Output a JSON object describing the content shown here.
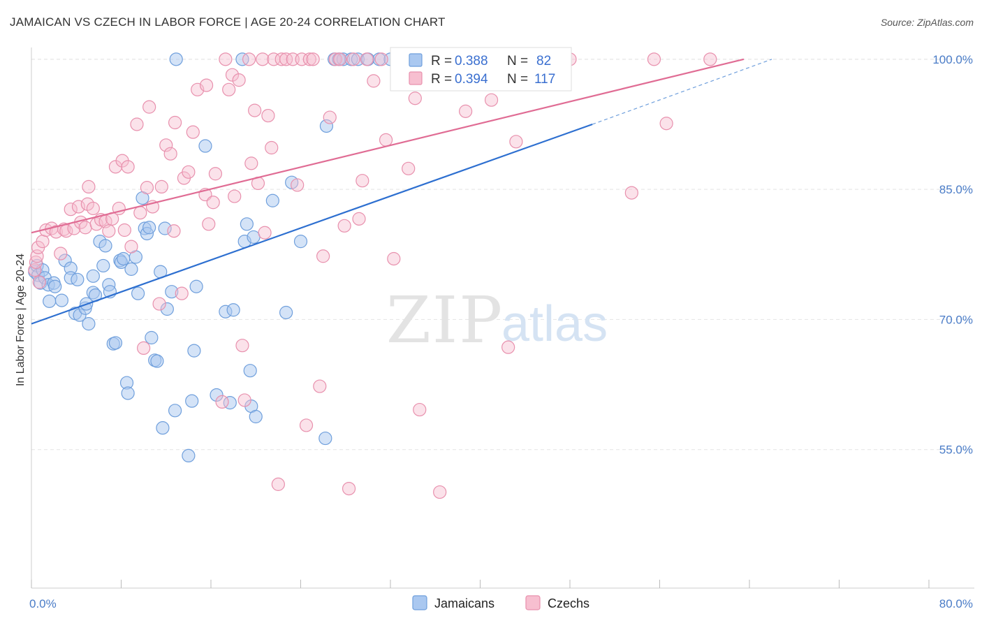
{
  "title": "JAMAICAN VS CZECH IN LABOR FORCE | AGE 20-24 CORRELATION CHART",
  "source": "Source: ZipAtlas.com",
  "colors": {
    "jamaicans_fill": "#aac8f0",
    "jamaicans_stroke": "#6f9fdc",
    "jamaicans_line": "#2d6fd0",
    "czechs_fill": "#f7bfd0",
    "czechs_stroke": "#e890ad",
    "czechs_line": "#e06c94",
    "tick_label": "#4a7cc7"
  },
  "legend": {
    "r_label": "R =",
    "n_label": "N =",
    "jamaicans_r": "0.388",
    "jamaicans_n": "82",
    "czechs_r": "0.394",
    "czechs_n": "117"
  },
  "watermark": {
    "zip": "ZIP",
    "atlas": "atlas"
  },
  "chart_data": {
    "type": "scatter",
    "title": "JAMAICAN VS CZECH IN LABOR FORCE | AGE 20-24 CORRELATION CHART",
    "xlabel": "",
    "ylabel": "In Labor Force | Age 20-24",
    "xlim": [
      0,
      80
    ],
    "ylim": [
      40,
      102
    ],
    "x_tick_labels": [
      "0.0%",
      "80.0%"
    ],
    "y_ticks": [
      55,
      70,
      85,
      100
    ],
    "y_tick_labels": [
      "55.0%",
      "70.0%",
      "85.0%",
      "100.0%"
    ],
    "grid": true,
    "legend_position": "top-center",
    "bottom_legend": [
      "Jamaicans",
      "Czechs"
    ],
    "series": [
      {
        "name": "Jamaicans",
        "r": 0.388,
        "n": 82,
        "trend": {
          "x0": 0,
          "y0": 69.5,
          "x1": 50,
          "y1": 92.5,
          "dash_x1": 66,
          "dash_y1": 100
        },
        "points": [
          [
            0.3,
            75.5
          ],
          [
            0.5,
            76.2
          ],
          [
            0.6,
            75.1
          ],
          [
            0.8,
            74.2
          ],
          [
            1.0,
            75.7
          ],
          [
            1.2,
            74.8
          ],
          [
            1.5,
            74.0
          ],
          [
            1.6,
            72.1
          ],
          [
            2.0,
            74.2
          ],
          [
            2.1,
            73.8
          ],
          [
            2.7,
            72.2
          ],
          [
            3.0,
            76.8
          ],
          [
            3.5,
            75.9
          ],
          [
            3.5,
            74.8
          ],
          [
            3.9,
            70.7
          ],
          [
            4.1,
            74.6
          ],
          [
            4.3,
            70.5
          ],
          [
            4.8,
            71.3
          ],
          [
            4.9,
            71.8
          ],
          [
            5.1,
            69.5
          ],
          [
            5.5,
            75.0
          ],
          [
            5.5,
            73.1
          ],
          [
            5.7,
            72.8
          ],
          [
            6.1,
            79.0
          ],
          [
            6.4,
            76.2
          ],
          [
            6.6,
            78.5
          ],
          [
            6.9,
            74.0
          ],
          [
            7.0,
            73.2
          ],
          [
            7.3,
            67.2
          ],
          [
            7.5,
            67.3
          ],
          [
            7.9,
            76.8
          ],
          [
            8.0,
            76.6
          ],
          [
            8.2,
            77.0
          ],
          [
            8.5,
            62.7
          ],
          [
            8.6,
            61.5
          ],
          [
            8.9,
            75.8
          ],
          [
            9.3,
            77.2
          ],
          [
            9.5,
            73.0
          ],
          [
            9.9,
            84.0
          ],
          [
            10.1,
            80.5
          ],
          [
            10.3,
            79.9
          ],
          [
            10.5,
            80.6
          ],
          [
            10.7,
            67.9
          ],
          [
            11.0,
            65.3
          ],
          [
            11.2,
            65.2
          ],
          [
            11.5,
            75.5
          ],
          [
            11.7,
            57.5
          ],
          [
            11.9,
            80.5
          ],
          [
            12.1,
            71.2
          ],
          [
            12.5,
            73.2
          ],
          [
            12.8,
            59.5
          ],
          [
            12.9,
            100.0
          ],
          [
            14.0,
            54.3
          ],
          [
            14.3,
            60.6
          ],
          [
            14.5,
            66.4
          ],
          [
            14.7,
            73.8
          ],
          [
            15.5,
            90.0
          ],
          [
            16.5,
            61.3
          ],
          [
            17.3,
            70.9
          ],
          [
            17.7,
            60.4
          ],
          [
            18.0,
            71.1
          ],
          [
            18.8,
            100.0
          ],
          [
            19.0,
            79.0
          ],
          [
            19.2,
            81.0
          ],
          [
            19.5,
            64.1
          ],
          [
            19.6,
            60.0
          ],
          [
            19.8,
            79.5
          ],
          [
            20.0,
            58.8
          ],
          [
            21.5,
            83.7
          ],
          [
            22.7,
            70.8
          ],
          [
            23.2,
            85.8
          ],
          [
            24.0,
            79.0
          ],
          [
            26.2,
            56.3
          ],
          [
            26.3,
            92.3
          ],
          [
            27.0,
            100.0
          ],
          [
            27.4,
            100.0
          ],
          [
            27.8,
            100.0
          ],
          [
            28.5,
            100.0
          ],
          [
            29.1,
            100.0
          ],
          [
            30.0,
            100.0
          ],
          [
            31.0,
            100.0
          ],
          [
            32.0,
            100.0
          ]
        ]
      },
      {
        "name": "Czechs",
        "r": 0.394,
        "n": 117,
        "trend": {
          "x0": 0,
          "y0": 80.0,
          "x1": 63.5,
          "y1": 100.0
        },
        "points": [
          [
            0.3,
            75.7
          ],
          [
            0.4,
            76.6
          ],
          [
            0.5,
            77.3
          ],
          [
            0.6,
            78.3
          ],
          [
            0.7,
            74.3
          ],
          [
            1.0,
            79.0
          ],
          [
            1.3,
            80.3
          ],
          [
            1.8,
            80.5
          ],
          [
            2.2,
            80.1
          ],
          [
            2.6,
            77.6
          ],
          [
            2.9,
            80.4
          ],
          [
            3.1,
            80.2
          ],
          [
            3.5,
            82.7
          ],
          [
            3.8,
            80.5
          ],
          [
            4.2,
            83.0
          ],
          [
            4.4,
            81.2
          ],
          [
            4.8,
            80.6
          ],
          [
            5.0,
            83.3
          ],
          [
            5.1,
            85.3
          ],
          [
            5.5,
            82.8
          ],
          [
            5.8,
            81.0
          ],
          [
            6.2,
            81.5
          ],
          [
            6.6,
            81.3
          ],
          [
            6.9,
            80.2
          ],
          [
            7.2,
            81.6
          ],
          [
            7.5,
            87.6
          ],
          [
            7.8,
            82.8
          ],
          [
            8.1,
            88.3
          ],
          [
            8.3,
            80.3
          ],
          [
            8.6,
            87.6
          ],
          [
            8.9,
            78.4
          ],
          [
            9.4,
            92.5
          ],
          [
            9.7,
            82.3
          ],
          [
            10.0,
            66.7
          ],
          [
            10.3,
            85.2
          ],
          [
            10.5,
            94.5
          ],
          [
            10.8,
            83.0
          ],
          [
            11.4,
            71.8
          ],
          [
            11.6,
            85.3
          ],
          [
            12.0,
            90.1
          ],
          [
            12.4,
            89.1
          ],
          [
            12.7,
            80.2
          ],
          [
            12.8,
            92.7
          ],
          [
            13.4,
            73.0
          ],
          [
            13.6,
            86.3
          ],
          [
            14.0,
            87.0
          ],
          [
            14.4,
            91.6
          ],
          [
            14.8,
            96.5
          ],
          [
            15.5,
            84.4
          ],
          [
            15.6,
            97.0
          ],
          [
            15.8,
            81.0
          ],
          [
            16.2,
            83.5
          ],
          [
            16.4,
            86.8
          ],
          [
            17.0,
            60.5
          ],
          [
            17.3,
            100.0
          ],
          [
            17.6,
            96.5
          ],
          [
            17.9,
            98.2
          ],
          [
            18.1,
            84.2
          ],
          [
            18.5,
            97.6
          ],
          [
            18.8,
            67.0
          ],
          [
            19.0,
            60.7
          ],
          [
            19.4,
            100.0
          ],
          [
            19.6,
            88.0
          ],
          [
            19.9,
            94.1
          ],
          [
            20.2,
            85.7
          ],
          [
            20.6,
            100.0
          ],
          [
            20.8,
            80.0
          ],
          [
            21.1,
            93.5
          ],
          [
            21.4,
            89.8
          ],
          [
            21.6,
            100.0
          ],
          [
            22.0,
            51.0
          ],
          [
            22.3,
            100.0
          ],
          [
            22.7,
            100.0
          ],
          [
            23.3,
            100.0
          ],
          [
            23.7,
            85.5
          ],
          [
            24.1,
            100.0
          ],
          [
            24.5,
            57.8
          ],
          [
            24.8,
            100.0
          ],
          [
            25.1,
            100.0
          ],
          [
            25.7,
            62.3
          ],
          [
            26.0,
            77.3
          ],
          [
            26.6,
            93.3
          ],
          [
            27.1,
            100.0
          ],
          [
            27.5,
            100.0
          ],
          [
            27.9,
            80.8
          ],
          [
            28.3,
            50.5
          ],
          [
            28.7,
            100.0
          ],
          [
            29.2,
            81.6
          ],
          [
            29.5,
            86.0
          ],
          [
            29.9,
            100.0
          ],
          [
            30.5,
            97.5
          ],
          [
            31.2,
            100.0
          ],
          [
            31.6,
            90.7
          ],
          [
            32.3,
            77.0
          ],
          [
            32.7,
            100.0
          ],
          [
            33.1,
            100.0
          ],
          [
            33.6,
            87.4
          ],
          [
            34.2,
            95.5
          ],
          [
            34.6,
            59.6
          ],
          [
            35.5,
            100.0
          ],
          [
            36.1,
            100.0
          ],
          [
            36.4,
            50.1
          ],
          [
            37.0,
            100.0
          ],
          [
            37.6,
            100.0
          ],
          [
            38.7,
            94.0
          ],
          [
            40.4,
            100.0
          ],
          [
            41.0,
            95.3
          ],
          [
            41.5,
            100.0
          ],
          [
            42.5,
            66.8
          ],
          [
            43.2,
            90.5
          ],
          [
            44.3,
            100.0
          ],
          [
            47.4,
            100.0
          ],
          [
            48.0,
            100.0
          ],
          [
            53.5,
            84.6
          ],
          [
            55.5,
            100.0
          ],
          [
            56.6,
            92.6
          ],
          [
            60.5,
            100.0
          ]
        ]
      }
    ]
  }
}
